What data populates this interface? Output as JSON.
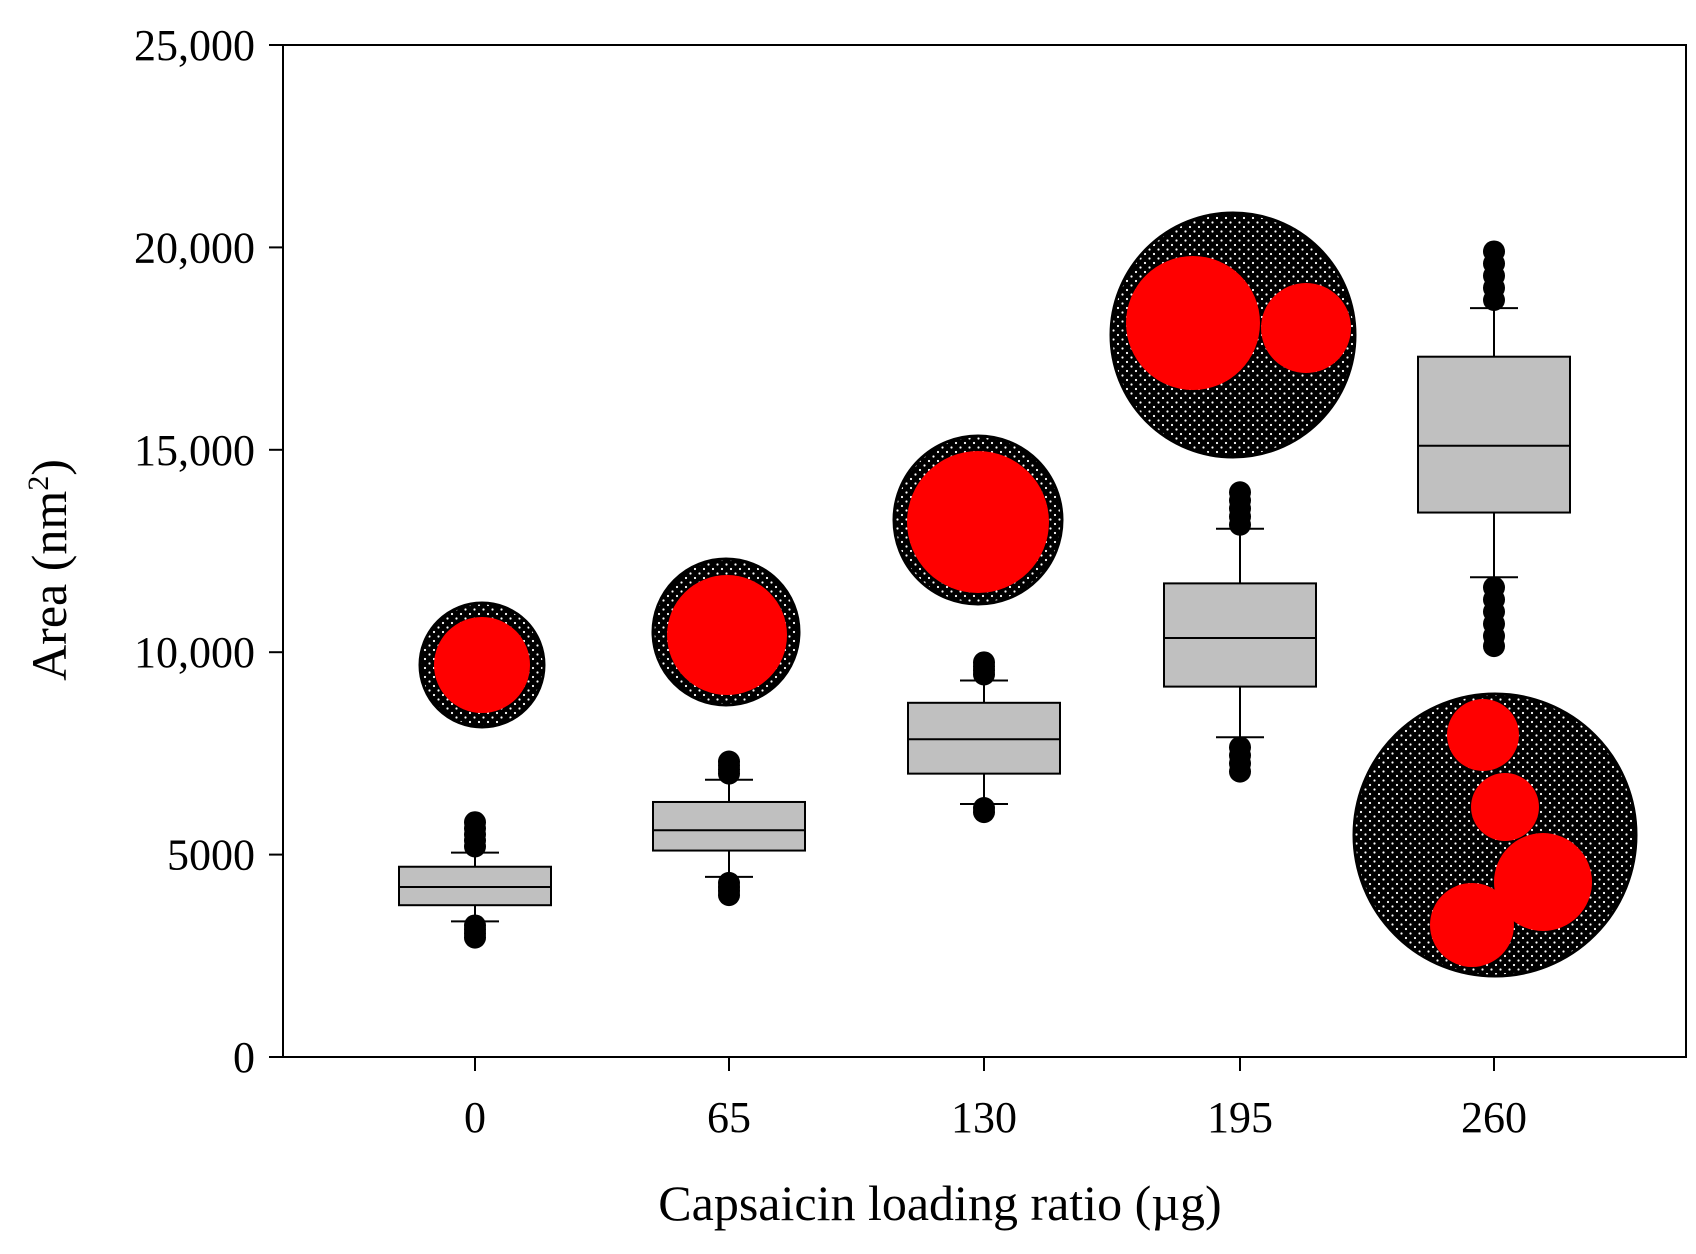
{
  "chart_data": {
    "type": "box",
    "xlabel": "Capsaicin loading ratio (µg)",
    "ylabel_main": "Area (nm",
    "ylabel_sup": "2",
    "ylabel_close": ")",
    "ylim": [
      0,
      25000
    ],
    "y_ticks": [
      0,
      5000,
      10000,
      15000,
      20000,
      25000
    ],
    "y_tick_labels": [
      "0",
      "5000",
      "10,000",
      "15,000",
      "20,000",
      "25,000"
    ],
    "categories": [
      "0",
      "65",
      "130",
      "195",
      "260"
    ],
    "boxes": [
      {
        "q1": 3750,
        "median": 4200,
        "q3": 4700,
        "whisker_low": 3350,
        "whisker_high": 5050,
        "outliers_low": [
          2950,
          3050,
          3150,
          3250
        ],
        "outliers_high": [
          5200,
          5350,
          5500,
          5650,
          5800
        ]
      },
      {
        "q1": 5100,
        "median": 5600,
        "q3": 6300,
        "whisker_low": 4450,
        "whisker_high": 6850,
        "outliers_low": [
          4000,
          4100,
          4200,
          4300
        ],
        "outliers_high": [
          7000,
          7100,
          7200,
          7300
        ]
      },
      {
        "q1": 7000,
        "median": 7850,
        "q3": 8750,
        "whisker_low": 6250,
        "whisker_high": 9300,
        "outliers_low": [
          6050,
          6150
        ],
        "outliers_high": [
          9450,
          9550,
          9650,
          9750
        ]
      },
      {
        "q1": 9150,
        "median": 10350,
        "q3": 11700,
        "whisker_low": 7900,
        "whisker_high": 13050,
        "outliers_low": [
          7050,
          7250,
          7450,
          7650
        ],
        "outliers_high": [
          13150,
          13350,
          13550,
          13750,
          13950
        ]
      },
      {
        "q1": 13450,
        "median": 15100,
        "q3": 17300,
        "whisker_low": 11850,
        "whisker_high": 18500,
        "outliers_low": [
          10150,
          10400,
          10700,
          11000,
          11300,
          11600
        ],
        "outliers_high": [
          18700,
          19000,
          19300,
          19600,
          19900
        ]
      }
    ],
    "colors": {
      "box_fill": "#c0c0c0",
      "core": "#ff0000",
      "shell": "#000000",
      "stroke": "#000000"
    }
  }
}
